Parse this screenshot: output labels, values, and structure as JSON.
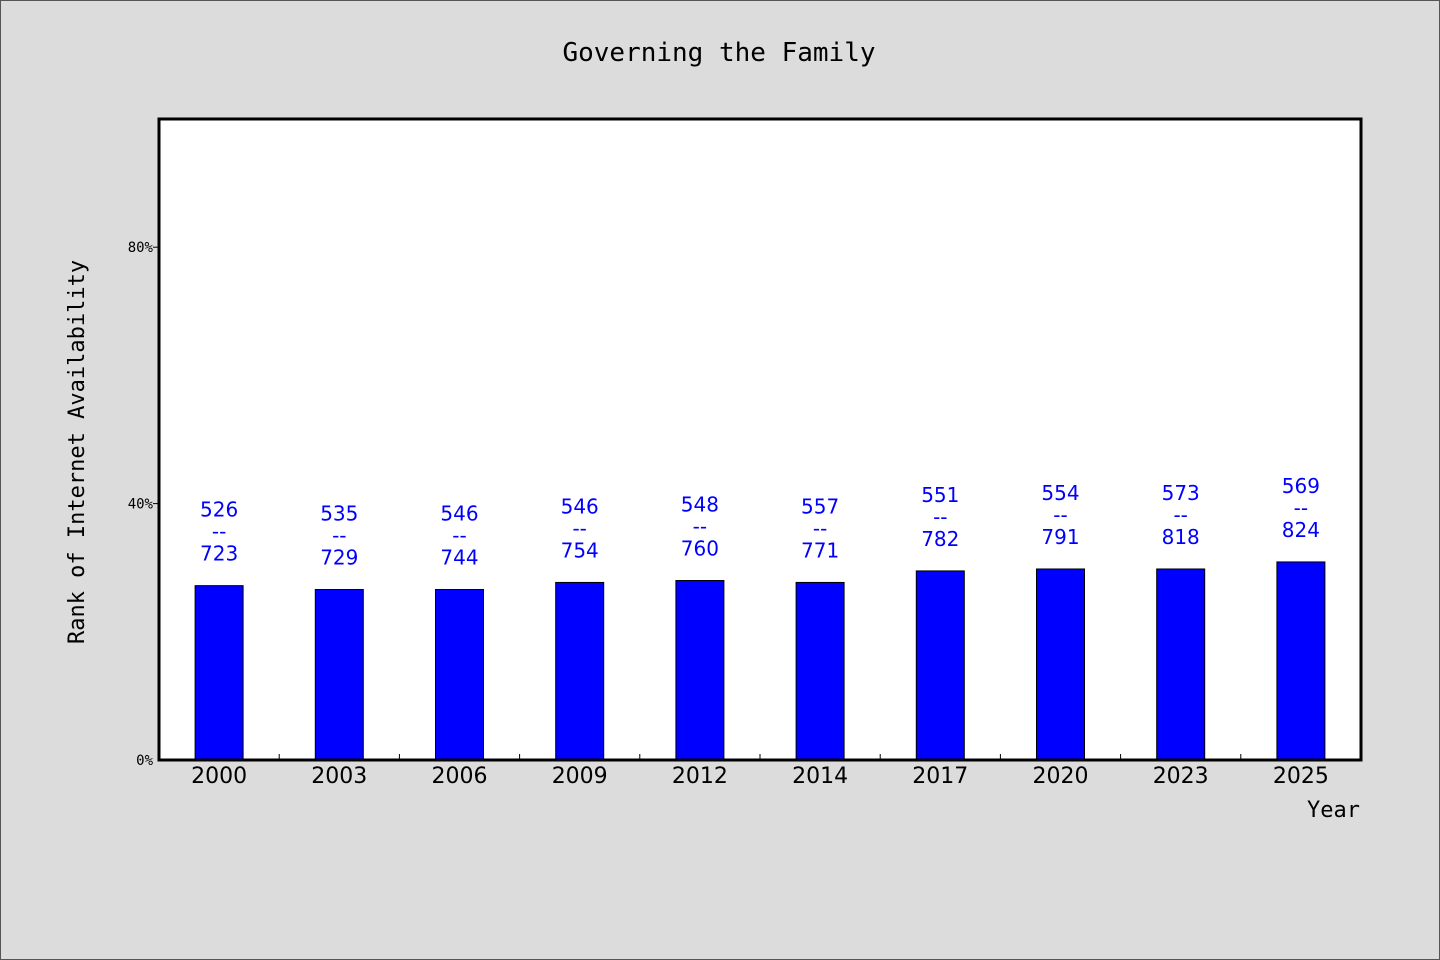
{
  "chart_data": {
    "type": "bar",
    "title": "Governing the Family",
    "xlabel": "Year",
    "ylabel": "Rank of Internet Availability",
    "categories": [
      "2000",
      "2003",
      "2006",
      "2009",
      "2012",
      "2014",
      "2017",
      "2020",
      "2023",
      "2025"
    ],
    "numerators": [
      526,
      535,
      546,
      546,
      548,
      557,
      551,
      554,
      573,
      569
    ],
    "denominators": [
      723,
      729,
      744,
      754,
      760,
      771,
      782,
      791,
      818,
      824
    ],
    "values_percent": [
      27.2,
      26.6,
      26.6,
      27.7,
      28.0,
      27.7,
      29.5,
      29.8,
      29.8,
      30.9
    ],
    "ylim": [
      0,
      100
    ],
    "yticks": [
      0,
      40,
      80
    ],
    "ytick_labels": [
      "0%",
      "40%",
      "80%"
    ],
    "label_separator": "--",
    "bar_color": "#0000ff",
    "label_color": "#0000ff",
    "grid": false
  }
}
